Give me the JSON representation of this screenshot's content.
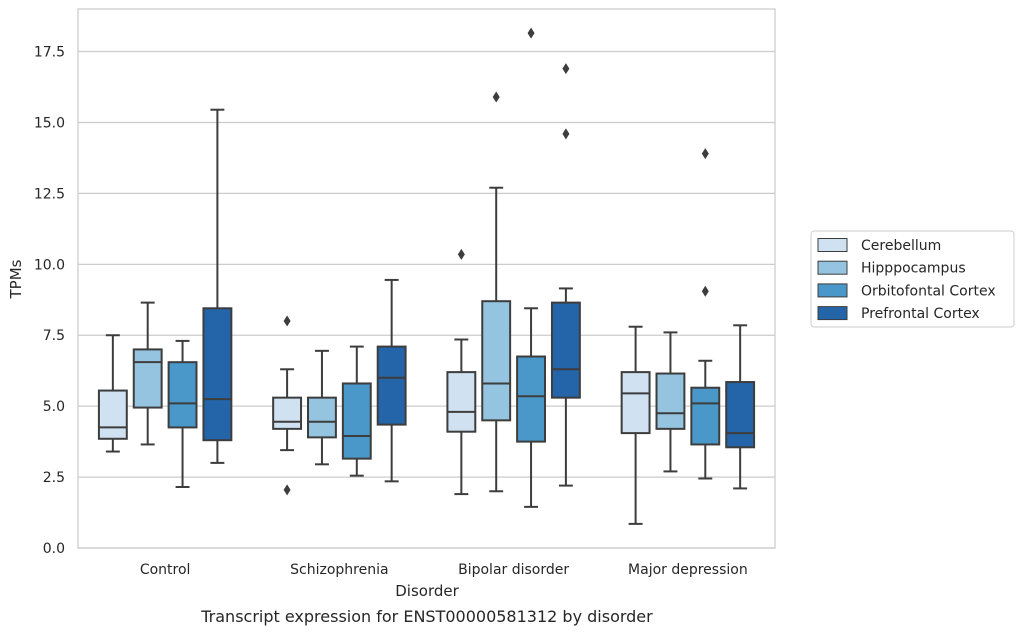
{
  "caption": "Transcript expression for ENST00000581312 by disorder",
  "chart_data": {
    "type": "box",
    "xlabel": "Disorder",
    "ylabel": "TPMs",
    "ylim": [
      0,
      19
    ],
    "yticks": [
      0.0,
      2.5,
      5.0,
      7.5,
      10.0,
      12.5,
      15.0,
      17.5
    ],
    "ytick_labels": [
      "0.0",
      "2.5",
      "5.0",
      "7.5",
      "10.0",
      "12.5",
      "15.0",
      "17.5"
    ],
    "grid": "horizontal",
    "legend_placement": "right",
    "categories": [
      "Control",
      "Schizophrenia",
      "Bipolar disorder",
      "Major depression"
    ],
    "series": [
      {
        "name": "Cerebellum",
        "color": "#d0e1f2",
        "boxes": [
          {
            "whislo": 3.4,
            "q1": 3.85,
            "med": 4.25,
            "q3": 5.55,
            "whishi": 7.5,
            "fliers": []
          },
          {
            "whislo": 3.45,
            "q1": 4.2,
            "med": 4.45,
            "q3": 5.3,
            "whishi": 6.3,
            "fliers": [
              8.0,
              2.05
            ]
          },
          {
            "whislo": 1.9,
            "q1": 4.1,
            "med": 4.8,
            "q3": 6.2,
            "whishi": 7.35,
            "fliers": [
              10.35
            ]
          },
          {
            "whislo": 0.85,
            "q1": 4.05,
            "med": 5.45,
            "q3": 6.2,
            "whishi": 7.8,
            "fliers": []
          }
        ]
      },
      {
        "name": "Hipppocampus",
        "color": "#94c4df",
        "boxes": [
          {
            "whislo": 3.65,
            "q1": 4.95,
            "med": 6.55,
            "q3": 7.0,
            "whishi": 8.65,
            "fliers": []
          },
          {
            "whislo": 2.95,
            "q1": 3.9,
            "med": 4.45,
            "q3": 5.3,
            "whishi": 6.95,
            "fliers": []
          },
          {
            "whislo": 2.0,
            "q1": 4.5,
            "med": 5.8,
            "q3": 8.7,
            "whishi": 12.7,
            "fliers": [
              15.9
            ]
          },
          {
            "whislo": 2.7,
            "q1": 4.2,
            "med": 4.75,
            "q3": 6.15,
            "whishi": 7.6,
            "fliers": []
          }
        ]
      },
      {
        "name": "Orbitofontal Cortex",
        "color": "#4a98c9",
        "boxes": [
          {
            "whislo": 2.15,
            "q1": 4.25,
            "med": 5.1,
            "q3": 6.55,
            "whishi": 7.3,
            "fliers": []
          },
          {
            "whislo": 2.55,
            "q1": 3.15,
            "med": 3.95,
            "q3": 5.8,
            "whishi": 7.1,
            "fliers": []
          },
          {
            "whislo": 1.45,
            "q1": 3.75,
            "med": 5.35,
            "q3": 6.75,
            "whishi": 8.45,
            "fliers": [
              18.15
            ]
          },
          {
            "whislo": 2.45,
            "q1": 3.65,
            "med": 5.1,
            "q3": 5.65,
            "whishi": 6.6,
            "fliers": [
              13.9,
              9.05
            ]
          }
        ]
      },
      {
        "name": "Prefrontal Cortex",
        "color": "#2464a9",
        "boxes": [
          {
            "whislo": 3.0,
            "q1": 3.8,
            "med": 5.25,
            "q3": 8.45,
            "whishi": 15.45,
            "fliers": []
          },
          {
            "whislo": 2.35,
            "q1": 4.35,
            "med": 6.0,
            "q3": 7.1,
            "whishi": 9.45,
            "fliers": []
          },
          {
            "whislo": 2.2,
            "q1": 5.3,
            "med": 6.3,
            "q3": 8.65,
            "whishi": 9.15,
            "fliers": [
              16.9,
              14.6
            ]
          },
          {
            "whislo": 2.1,
            "q1": 3.55,
            "med": 4.05,
            "q3": 5.85,
            "whishi": 7.85,
            "fliers": []
          }
        ]
      }
    ]
  }
}
